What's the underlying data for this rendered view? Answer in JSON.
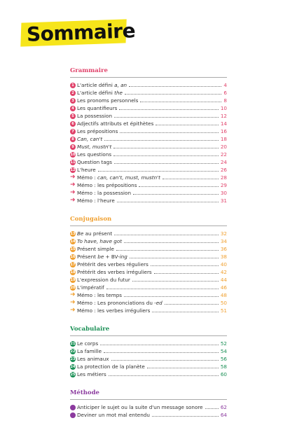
{
  "header": {
    "title": "Sommaire"
  },
  "sections": [
    {
      "title": "Grammaire",
      "color": "#e0426a",
      "entries": [
        {
          "number": 1,
          "parts": [
            {
              "text": "L'article défini "
            },
            {
              "text": "a, an",
              "italic": true
            }
          ],
          "page": 4
        },
        {
          "number": 2,
          "parts": [
            {
              "text": "L'article défini "
            },
            {
              "text": "the",
              "italic": true
            }
          ],
          "page": 6
        },
        {
          "number": 3,
          "parts": [
            {
              "text": "Les pronoms personnels"
            }
          ],
          "page": 8
        },
        {
          "number": 4,
          "parts": [
            {
              "text": "Les quantifieurs"
            }
          ],
          "page": 10
        },
        {
          "number": 5,
          "parts": [
            {
              "text": "La possession"
            }
          ],
          "page": 12
        },
        {
          "number": 6,
          "parts": [
            {
              "text": "Adjectifs attributs et épithètes"
            }
          ],
          "page": 14
        },
        {
          "number": 7,
          "parts": [
            {
              "text": "Les prépositions"
            }
          ],
          "page": 16
        },
        {
          "number": 8,
          "parts": [
            {
              "text": "Can, can't",
              "italic": true
            }
          ],
          "page": 18
        },
        {
          "number": 9,
          "parts": [
            {
              "text": "Must, mustn't",
              "italic": true
            }
          ],
          "page": 20
        },
        {
          "number": 10,
          "parts": [
            {
              "text": "Les questions"
            }
          ],
          "page": 22
        },
        {
          "number": 11,
          "parts": [
            {
              "text": "Question tags"
            }
          ],
          "page": 24
        },
        {
          "number": 12,
          "parts": [
            {
              "text": "L'heure"
            }
          ],
          "page": 26
        },
        {
          "arrow": true,
          "parts": [
            {
              "text": "Mémo : "
            },
            {
              "text": "can, can't, must, mustn't",
              "italic": true
            }
          ],
          "page": 28
        },
        {
          "arrow": true,
          "parts": [
            {
              "text": "Mémo : les prépositions"
            }
          ],
          "page": 29
        },
        {
          "arrow": true,
          "parts": [
            {
              "text": "Mémo : la possession"
            }
          ],
          "page": 30
        },
        {
          "arrow": true,
          "parts": [
            {
              "text": "Mémo : l'heure"
            }
          ],
          "page": 31
        }
      ]
    },
    {
      "title": "Conjugaison",
      "color": "#f0a030",
      "entries": [
        {
          "number": 13,
          "parts": [
            {
              "text": "Be",
              "italic": true
            },
            {
              "text": " au présent"
            }
          ],
          "page": 32
        },
        {
          "number": 14,
          "parts": [
            {
              "text": "To have, have got",
              "italic": true
            }
          ],
          "page": 34
        },
        {
          "number": 15,
          "parts": [
            {
              "text": "Présent simple"
            }
          ],
          "page": 36
        },
        {
          "number": 16,
          "parts": [
            {
              "text": "Présent "
            },
            {
              "text": "be",
              "italic": true
            },
            {
              "text": " + BV-"
            },
            {
              "text": "ing",
              "italic": true
            }
          ],
          "page": 38
        },
        {
          "number": 17,
          "parts": [
            {
              "text": "Prétérit des verbes réguliers"
            }
          ],
          "page": 40
        },
        {
          "number": 18,
          "parts": [
            {
              "text": "Prétérit des verbes irréguliers"
            }
          ],
          "page": 42
        },
        {
          "number": 19,
          "parts": [
            {
              "text": "L'expression du futur"
            }
          ],
          "page": 44
        },
        {
          "number": 20,
          "parts": [
            {
              "text": "L'impératif"
            }
          ],
          "page": 46
        },
        {
          "arrow": true,
          "parts": [
            {
              "text": "Mémo : les temps"
            }
          ],
          "page": 48
        },
        {
          "arrow": true,
          "parts": [
            {
              "text": "Mémo : Les prononciations du "
            },
            {
              "text": "-ed",
              "italic": true
            }
          ],
          "page": 50
        },
        {
          "arrow": true,
          "parts": [
            {
              "text": "Mémo : les verbes irréguliers"
            }
          ],
          "page": 51
        }
      ]
    },
    {
      "title": "Vocabulaire",
      "color": "#1a8f55",
      "entries": [
        {
          "number": 21,
          "parts": [
            {
              "text": "Le corps"
            }
          ],
          "page": 52
        },
        {
          "number": 22,
          "parts": [
            {
              "text": "La famille"
            }
          ],
          "page": 54
        },
        {
          "number": 23,
          "parts": [
            {
              "text": "Les animaux"
            }
          ],
          "page": 56
        },
        {
          "number": 24,
          "parts": [
            {
              "text": "La protection de la planète"
            }
          ],
          "page": 58
        },
        {
          "number": 25,
          "parts": [
            {
              "text": "Les métiers"
            }
          ],
          "page": 60
        }
      ]
    },
    {
      "title": "Méthode",
      "color": "#8b3a9e",
      "entries": [
        {
          "icon": true,
          "parts": [
            {
              "text": "Anticiper le sujet ou la suite d'un message sonore"
            }
          ],
          "page": 62
        },
        {
          "icon": true,
          "parts": [
            {
              "text": "Deviner un mot mal entendu"
            }
          ],
          "page": 64
        }
      ]
    }
  ]
}
